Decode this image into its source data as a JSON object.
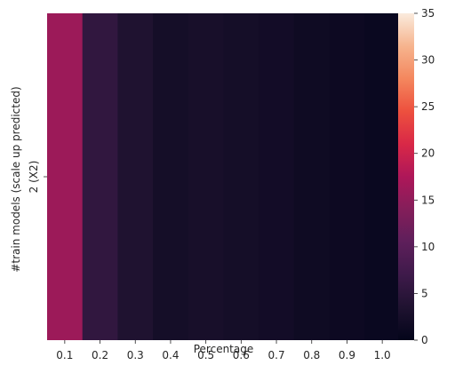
{
  "chart_data": {
    "type": "heatmap",
    "title": "",
    "xlabel": "Percentage",
    "ylabel": "#train models (scale up predicted)",
    "x_categories": [
      "0.1",
      "0.2",
      "0.3",
      "0.4",
      "0.5",
      "0.6",
      "0.7",
      "0.8",
      "0.9",
      "1.0"
    ],
    "y_categories": [
      "2 (X2)"
    ],
    "values": [
      [
        16.0,
        5.5,
        3.5,
        2.3,
        2.6,
        2.3,
        2.0,
        1.5,
        1.2,
        0.9
      ]
    ],
    "colorbar": {
      "vmin": 0,
      "vmax": 35,
      "ticks": [
        "0",
        "5",
        "10",
        "15",
        "20",
        "25",
        "30",
        "35"
      ],
      "colormap": "rocket"
    },
    "grid": false
  }
}
